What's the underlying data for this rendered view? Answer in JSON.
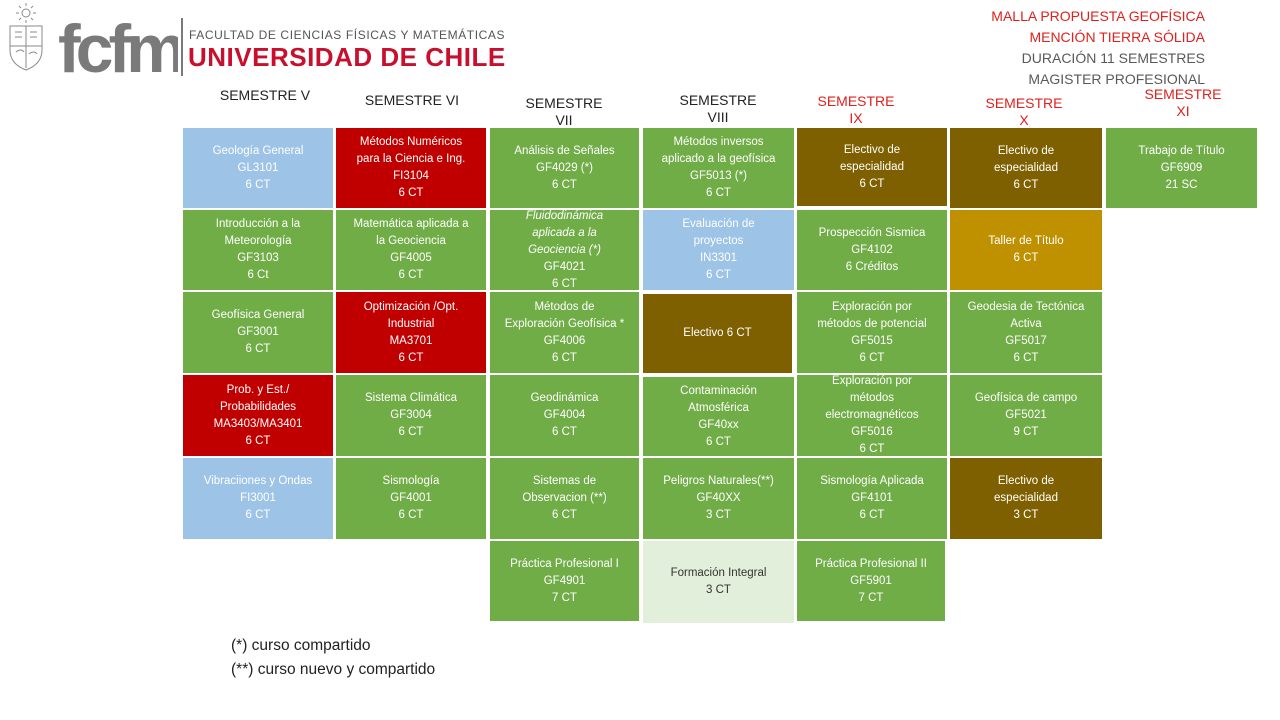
{
  "header": {
    "faculty_name": "FACULTAD DE CIENCIAS FÍSICAS Y MATEMÁTICAS",
    "university_name": "UNIVERSIDAD DE CHILE",
    "logo_text": "fcfm"
  },
  "program_info": {
    "line1": "MALLA PROPUESTA GEOFÍSICA",
    "line2": "MENCIÓN TIERRA SÓLIDA",
    "line3": "DURACIÓN 11 SEMESTRES",
    "line4": "MAGISTER PROFESIONAL"
  },
  "semesters": [
    {
      "line1": "SEMESTRE V",
      "line2": ""
    },
    {
      "line1": "SEMESTRE VI",
      "line2": ""
    },
    {
      "line1": "SEMESTRE",
      "line2": "VII"
    },
    {
      "line1": "SEMESTRE",
      "line2": "VIII"
    },
    {
      "line1": "SEMESTRE",
      "line2": "IX"
    },
    {
      "line1": "SEMESTRE",
      "line2": "X"
    },
    {
      "line1": "SEMESTRE",
      "line2": "XI"
    }
  ],
  "colors": {
    "green": "#70ad47",
    "blue": "#9dc3e6",
    "red": "#c00000",
    "brown": "#7f6000",
    "gold": "#bf9000",
    "light_green": "#e2efda",
    "title_red": "#e0201e"
  },
  "courses": [
    {
      "id": "geologia-general",
      "lines": [
        "Geología General",
        "GL3101",
        "6 CT"
      ]
    },
    {
      "id": "intro-meteorologia",
      "lines": [
        "Introducción a la",
        "Meteorología",
        "GF3103",
        "6 Ct"
      ]
    },
    {
      "id": "geofisica-general",
      "lines": [
        "Geofísica General",
        "GF3001",
        "6 CT"
      ]
    },
    {
      "id": "prob-est",
      "lines": [
        "Prob. y Est./",
        "Probabilidades",
        "MA3403/MA3401",
        "6 CT"
      ]
    },
    {
      "id": "vibraciones-ondas",
      "lines": [
        "Vibraciiones y Ondas",
        "FI3001",
        "6 CT"
      ]
    },
    {
      "id": "metodos-numericos",
      "lines": [
        "Métodos Numéricos",
        "para la Ciencia e Ing.",
        "FI3104",
        "6 CT"
      ]
    },
    {
      "id": "matematica-aplicada",
      "lines": [
        "Matemática aplicada a",
        "la Geociencia",
        "GF4005",
        "6 CT"
      ]
    },
    {
      "id": "optimizacion",
      "lines": [
        "Optimización /Opt.",
        "Industrial",
        "MA3701",
        "6 CT"
      ]
    },
    {
      "id": "sistema-climatica",
      "lines": [
        "Sistema Climática",
        "GF3004",
        "6 CT"
      ]
    },
    {
      "id": "sismologia",
      "lines": [
        "Sismología",
        "GF4001",
        "6 CT"
      ]
    },
    {
      "id": "analisis-senales",
      "lines": [
        "Análisis de Señales",
        "GF4029 (*)",
        "6 CT"
      ]
    },
    {
      "id": "fluidodinamica",
      "lines": [
        "Fluidodinámica",
        "aplicada a la",
        "Geociencia (*)",
        "GF4021",
        "6 CT"
      ]
    },
    {
      "id": "metodos-exploracion",
      "lines": [
        "Métodos de",
        "Exploración Geofísica *",
        "GF4006",
        "6 CT"
      ]
    },
    {
      "id": "geodinamica",
      "lines": [
        "Geodinámica",
        "GF4004",
        "6 CT"
      ]
    },
    {
      "id": "sistemas-observacion",
      "lines": [
        "Sistemas de",
        "Observacion (**)",
        "6 CT"
      ]
    },
    {
      "id": "practica-profesional-1",
      "lines": [
        "Práctica Profesional I",
        "GF4901",
        "7 CT"
      ]
    },
    {
      "id": "metodos-inversos",
      "lines": [
        "Métodos inversos",
        "aplicado a la geofísica",
        "GF5013 (*)",
        "6 CT"
      ]
    },
    {
      "id": "evaluacion-proyectos",
      "lines": [
        "Evaluación de",
        "proyectos",
        "IN3301",
        "6 CT"
      ]
    },
    {
      "id": "electivo-viii",
      "lines": [
        "Electivo 6 CT"
      ]
    },
    {
      "id": "contaminacion",
      "lines": [
        "Contaminación",
        "Atmosférica",
        "GF40xx",
        "6 CT"
      ]
    },
    {
      "id": "peligros-naturales",
      "lines": [
        "Peligros Naturales(**)",
        "GF40XX",
        "3 CT"
      ]
    },
    {
      "id": "formacion-integral",
      "lines": [
        "Formación Integral",
        "3 CT"
      ]
    },
    {
      "id": "electivo-ix",
      "lines": [
        "Electivo de",
        "especialidad",
        "6 CT"
      ]
    },
    {
      "id": "prospeccion-sismica",
      "lines": [
        "Prospección Sismica",
        "GF4102",
        "6 Créditos"
      ]
    },
    {
      "id": "exploracion-potencial",
      "lines": [
        "Exploración por",
        "métodos de potencial",
        "GF5015",
        "6 CT"
      ]
    },
    {
      "id": "exploracion-electromagneticos",
      "lines": [
        "Exploración por",
        "métodos",
        "electromagnéticos",
        "GF5016",
        "6 CT"
      ]
    },
    {
      "id": "sismologia-aplicada",
      "lines": [
        "Sismología Aplicada",
        "GF4101",
        "6 CT"
      ]
    },
    {
      "id": "practica-profesional-2",
      "lines": [
        "Práctica Profesional II",
        "GF5901",
        "7 CT"
      ]
    },
    {
      "id": "electivo-x",
      "lines": [
        "Electivo de",
        "especialidad",
        "6 CT"
      ]
    },
    {
      "id": "taller-titulo",
      "lines": [
        "Taller de Título",
        "6 CT"
      ]
    },
    {
      "id": "geodesia-tectonica",
      "lines": [
        "Geodesia de Tectónica",
        "Activa",
        "GF5017",
        "6 CT"
      ]
    },
    {
      "id": "geofisica-campo",
      "lines": [
        "Geofísica de campo",
        "GF5021",
        "9 CT"
      ]
    },
    {
      "id": "electivo-x-2",
      "lines": [
        "Electivo de",
        "especialidad",
        "3 CT"
      ]
    },
    {
      "id": "trabajo-titulo",
      "lines": [
        "Trabajo de Título",
        "GF6909",
        "21 SC"
      ]
    }
  ],
  "notes": {
    "shared": "(*) curso compartido",
    "new_shared": "(**) curso nuevo y compartido"
  }
}
